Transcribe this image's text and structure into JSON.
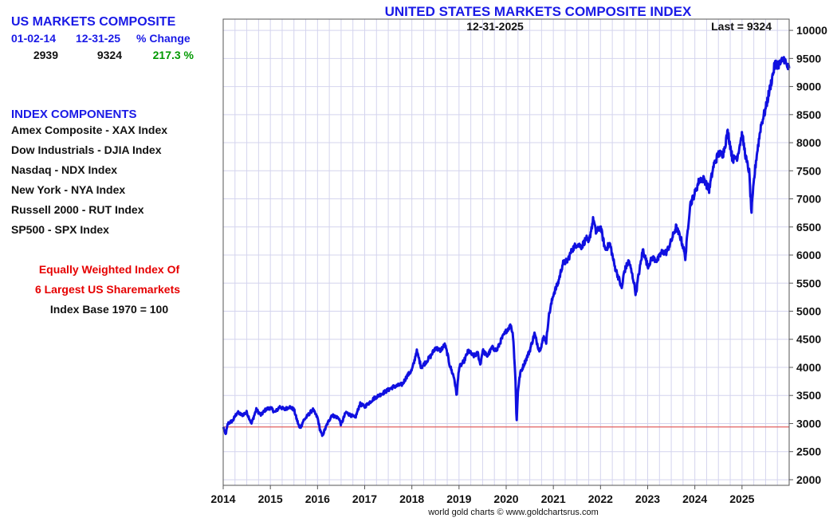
{
  "sidebar": {
    "summary_title": "US MARKETS COMPOSITE",
    "col_headers": [
      "01-02-14",
      "12-31-25",
      "% Change"
    ],
    "col_values": [
      "2939",
      "9324",
      "217.3 %"
    ],
    "components_title": "INDEX COMPONENTS",
    "components": [
      "Amex Composite - XAX Index",
      "Dow Industrials - DJIA Index",
      "Nasdaq - NDX Index",
      "New York - NYA Index",
      "Russell 2000 - RUT Index",
      "SP500 - SPX Index"
    ],
    "note_line1": "Equally Weighted Index Of",
    "note_line2": "6 Largest US Sharemarkets",
    "note_line3": "Index Base 1970 = 100"
  },
  "colors": {
    "title": "#1a1ae6",
    "series": "#1010e0",
    "reference_line": "#e06060",
    "grid": "#d4d4ee",
    "positive": "#009900",
    "note": "#e60000"
  },
  "chart_data": {
    "type": "line",
    "title": "UNITED STATES MARKETS COMPOSITE INDEX",
    "date_label": "12-31-2025",
    "last_label": "Last = 9324",
    "footer": "world gold charts © www.goldchartsrus.com",
    "xlabel": "",
    "ylabel": "",
    "xlim": [
      2014.0,
      2026.0
    ],
    "ylim": [
      1900,
      10200
    ],
    "x_ticks": [
      2014,
      2015,
      2016,
      2017,
      2018,
      2019,
      2020,
      2021,
      2022,
      2023,
      2024,
      2025
    ],
    "x_tick_labels": [
      "2014",
      "2015",
      "2016",
      "2017",
      "2018",
      "2019",
      "2020",
      "2021",
      "2022",
      "2023",
      "2024",
      "2025"
    ],
    "y_ticks": [
      2000,
      2500,
      3000,
      3500,
      4000,
      4500,
      5000,
      5500,
      6000,
      6500,
      7000,
      7500,
      8000,
      8500,
      9000,
      9500,
      10000
    ],
    "y_tick_labels": [
      "2000",
      "2500",
      "3000",
      "3500",
      "4000",
      "4500",
      "5000",
      "5500",
      "6000",
      "6500",
      "7000",
      "7500",
      "8000",
      "8500",
      "9000",
      "9500",
      "10000"
    ],
    "reference_value": 2939,
    "grid": true,
    "series": [
      {
        "name": "US Markets Composite",
        "x": [
          2014.0,
          2014.05,
          2014.1,
          2014.2,
          2014.3,
          2014.4,
          2014.5,
          2014.6,
          2014.7,
          2014.8,
          2014.9,
          2015.0,
          2015.1,
          2015.2,
          2015.3,
          2015.4,
          2015.5,
          2015.55,
          2015.62,
          2015.65,
          2015.7,
          2015.8,
          2015.9,
          2016.0,
          2016.05,
          2016.1,
          2016.2,
          2016.3,
          2016.45,
          2016.5,
          2016.6,
          2016.8,
          2016.9,
          2017.0,
          2017.2,
          2017.4,
          2017.6,
          2017.8,
          2017.9,
          2018.0,
          2018.05,
          2018.1,
          2018.2,
          2018.3,
          2018.4,
          2018.5,
          2018.6,
          2018.7,
          2018.75,
          2018.8,
          2018.9,
          2018.95,
          2019.0,
          2019.1,
          2019.2,
          2019.3,
          2019.4,
          2019.45,
          2019.5,
          2019.6,
          2019.7,
          2019.8,
          2019.9,
          2020.0,
          2020.1,
          2020.15,
          2020.2,
          2020.22,
          2020.25,
          2020.3,
          2020.4,
          2020.5,
          2020.6,
          2020.7,
          2020.75,
          2020.8,
          2020.85,
          2020.9,
          2021.0,
          2021.1,
          2021.2,
          2021.3,
          2021.4,
          2021.5,
          2021.6,
          2021.7,
          2021.75,
          2021.8,
          2021.85,
          2021.9,
          2022.0,
          2022.1,
          2022.2,
          2022.3,
          2022.4,
          2022.45,
          2022.5,
          2022.6,
          2022.7,
          2022.75,
          2022.8,
          2022.9,
          2023.0,
          2023.1,
          2023.2,
          2023.3,
          2023.4,
          2023.5,
          2023.6,
          2023.7,
          2023.75,
          2023.8,
          2023.85,
          2023.9,
          2024.0,
          2024.1,
          2024.2,
          2024.3,
          2024.4,
          2024.5,
          2024.6,
          2024.7,
          2024.8,
          2024.9,
          2025.0,
          2025.1,
          2025.15,
          2025.2,
          2025.25,
          2025.3,
          2025.4,
          2025.5,
          2025.6,
          2025.7,
          2025.8,
          2025.9,
          2025.95,
          2026.0
        ],
        "values": [
          2939,
          2800,
          3000,
          3050,
          3200,
          3150,
          3200,
          3000,
          3250,
          3150,
          3250,
          3280,
          3200,
          3300,
          3250,
          3300,
          3250,
          3100,
          2920,
          2950,
          3050,
          3150,
          3250,
          3100,
          2900,
          2780,
          2980,
          3150,
          3100,
          2980,
          3200,
          3100,
          3350,
          3300,
          3450,
          3550,
          3650,
          3700,
          3850,
          3950,
          4100,
          4300,
          4000,
          4100,
          4200,
          4350,
          4300,
          4400,
          4250,
          4050,
          3800,
          3500,
          4000,
          4100,
          4300,
          4200,
          4250,
          4050,
          4300,
          4200,
          4350,
          4300,
          4500,
          4650,
          4750,
          4550,
          3700,
          3000,
          3600,
          3900,
          4100,
          4300,
          4600,
          4300,
          4400,
          4550,
          4450,
          4900,
          5300,
          5500,
          5850,
          5900,
          6100,
          6200,
          6150,
          6300,
          6200,
          6450,
          6650,
          6400,
          6500,
          6100,
          6200,
          5800,
          5550,
          5400,
          5700,
          5900,
          5550,
          5300,
          5600,
          6100,
          5800,
          5950,
          5900,
          6050,
          6050,
          6250,
          6500,
          6300,
          6150,
          5950,
          6450,
          6900,
          7100,
          7350,
          7350,
          7150,
          7600,
          7800,
          7800,
          8200,
          7700,
          7750,
          8150,
          7650,
          7500,
          6750,
          7300,
          7700,
          8300,
          8600,
          9000,
          9400,
          9400,
          9500,
          9350,
          9324
        ]
      }
    ]
  }
}
